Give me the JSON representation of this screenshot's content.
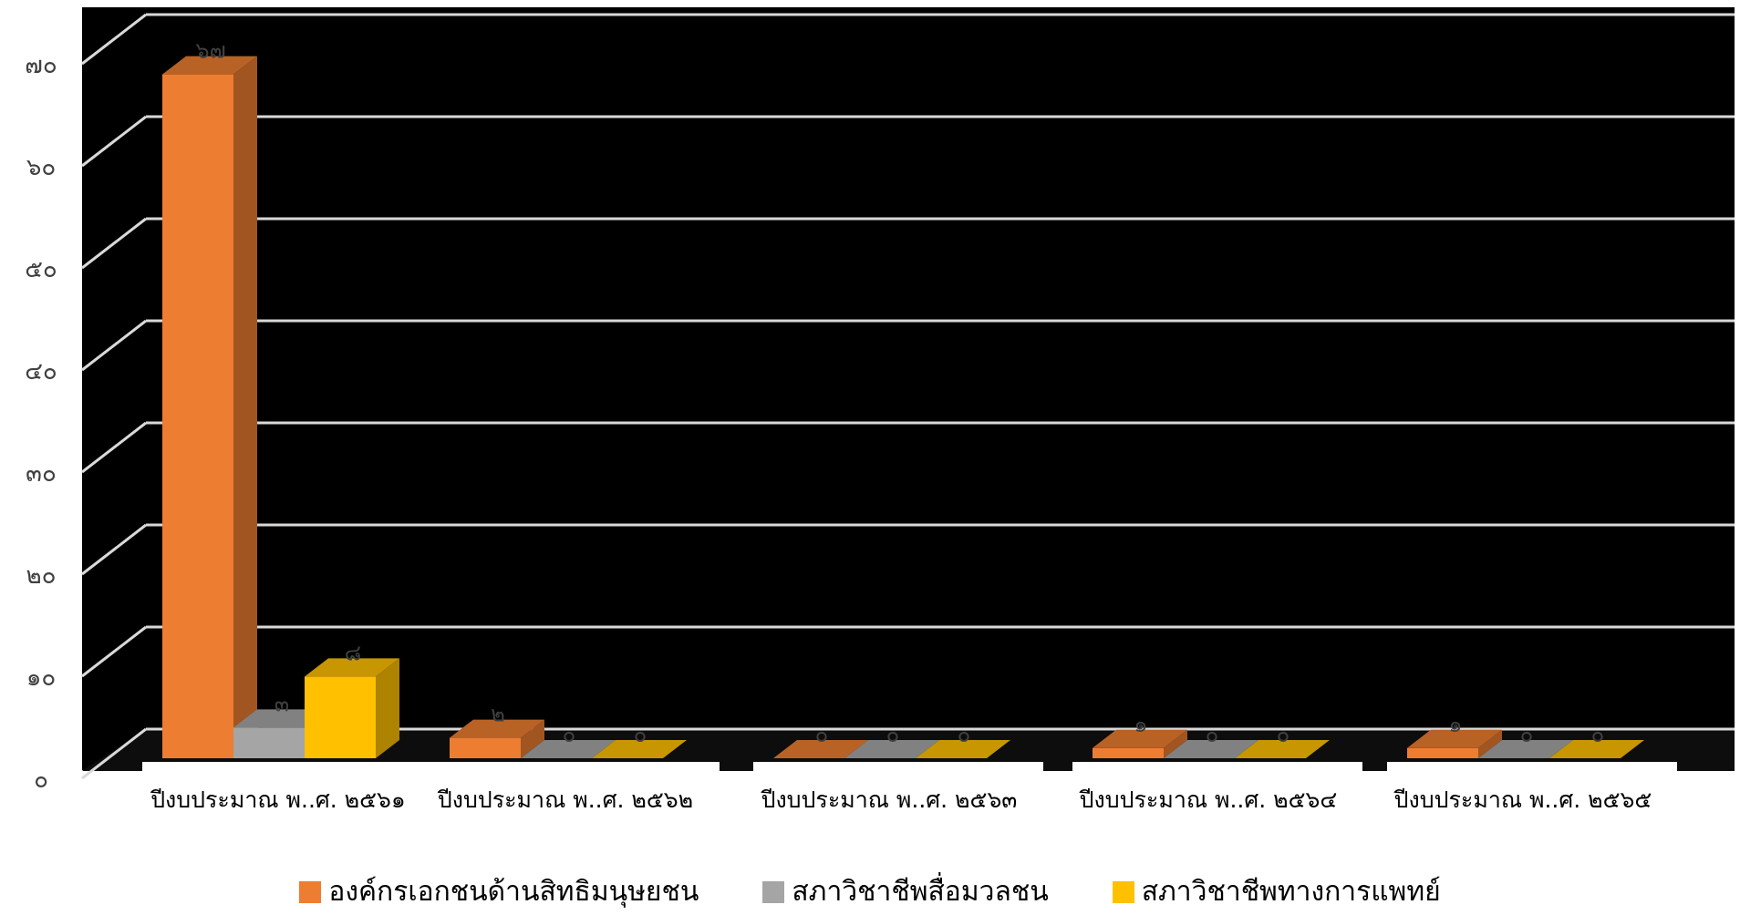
{
  "chart_data": {
    "type": "bar",
    "categories": [
      "ปีงบประมาณ พ..ศ. ๒๕๖๑",
      "ปีงบประมาณ พ..ศ. ๒๕๖๒",
      "ปีงบประมาณ พ..ศ. ๒๕๖๓",
      "ปีงบประมาณ พ..ศ. ๒๕๖๔",
      "ปีงบประมาณ พ..ศ. ๒๕๖๕"
    ],
    "series": [
      {
        "name": "องค์กรเอกชนด้านสิทธิมนุษยชน",
        "values": [
          67,
          2,
          0,
          1,
          1
        ],
        "labels": [
          "๖๗",
          "๒",
          "๐",
          "๑",
          "๑"
        ],
        "color": "#ED7D31"
      },
      {
        "name": "สภาวิชาชีพสื่อมวลชน",
        "values": [
          3,
          0,
          0,
          0,
          0
        ],
        "labels": [
          "๓",
          "๐",
          "๐",
          "๐",
          "๐"
        ],
        "color": "#A5A5A5"
      },
      {
        "name": "สภาวิชาชีพทางการแพทย์",
        "values": [
          8,
          0,
          0,
          0,
          0
        ],
        "labels": [
          "๘",
          "๐",
          "๐",
          "๐",
          "๐"
        ],
        "color": "#FFC000"
      }
    ],
    "y_ticks": [
      {
        "value": 0,
        "label": "๐"
      },
      {
        "value": 10,
        "label": "๑๐"
      },
      {
        "value": 20,
        "label": "๒๐"
      },
      {
        "value": 30,
        "label": "๓๐"
      },
      {
        "value": 40,
        "label": "๔๐"
      },
      {
        "value": 50,
        "label": "๕๐"
      },
      {
        "value": 60,
        "label": "๖๐"
      },
      {
        "value": 70,
        "label": "๗๐"
      }
    ],
    "ylim": [
      0,
      70
    ],
    "grid": true,
    "legend_position": "bottom",
    "background": "#000000"
  }
}
